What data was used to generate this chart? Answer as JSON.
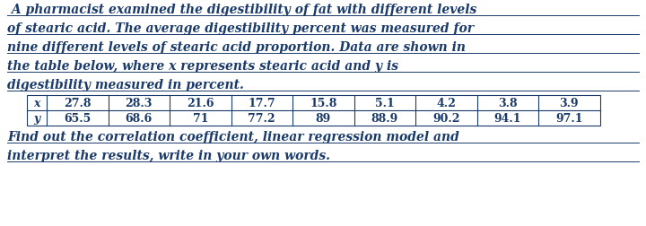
{
  "lines_p1": [
    " A pharmacist examined the digestibility of fat with different levels",
    "of stearic acid. The average digestibility percent was measured for",
    "nine different levels of stearic acid proportion. Data are shown in",
    "the table below, where x represents stearic acid and y is",
    "digestibility measured in percent."
  ],
  "lines_p2": [
    "Find out the correlation coefficient, linear regression model and",
    "interpret the results, write in your own words."
  ],
  "x_label": "x",
  "y_label": "y",
  "x_values": [
    "27.8",
    "28.3",
    "21.6",
    "17.7",
    "15.8",
    "5.1",
    "4.2",
    "3.8",
    "3.9"
  ],
  "y_values": [
    "65.5",
    "68.6",
    "71",
    "77.2",
    "89",
    "88.9",
    "90.2",
    "94.1",
    "97.1"
  ],
  "text_color": "#1a3a6b",
  "bg_color": "#ffffff",
  "font_size_para": 10.0,
  "font_size_table": 9.0
}
